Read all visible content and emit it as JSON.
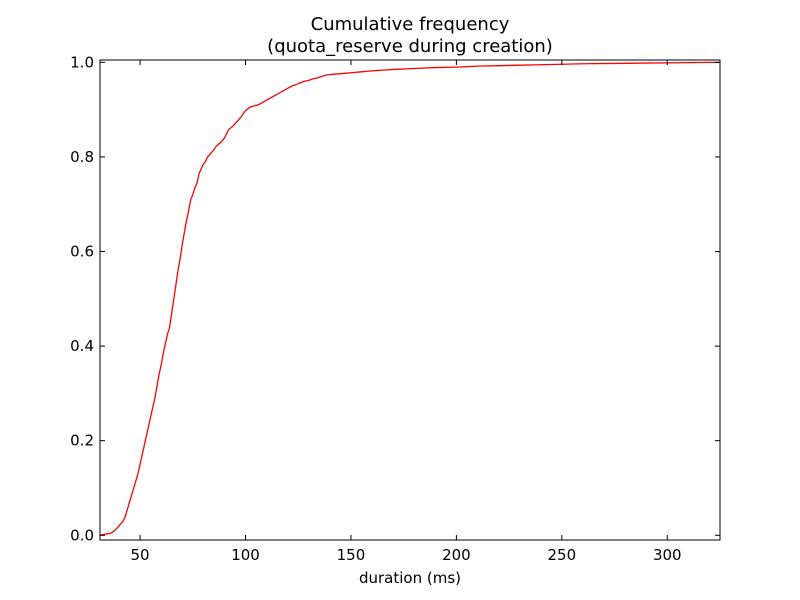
{
  "chart_data": {
    "type": "line",
    "title": "Cumulative frequency",
    "subtitle": "(quota_reserve during creation)",
    "xlabel": "duration (ms)",
    "ylabel": "",
    "xlim": [
      31,
      325
    ],
    "ylim": [
      -0.01,
      1.005
    ],
    "x_ticks": [
      50,
      100,
      150,
      200,
      250,
      300
    ],
    "x_tick_labels": [
      "50",
      "100",
      "150",
      "200",
      "250",
      "300"
    ],
    "y_ticks": [
      0.0,
      0.2,
      0.4,
      0.6,
      0.8,
      1.0
    ],
    "y_tick_labels": [
      "0.0",
      "0.2",
      "0.4",
      "0.6",
      "0.8",
      "1.0"
    ],
    "grid": false,
    "legend": "none",
    "series": [
      {
        "color": "#ff0000",
        "x": [
          31,
          33,
          36,
          38,
          40,
          42,
          43,
          44,
          45,
          46,
          47,
          48,
          49,
          50,
          51,
          52,
          53,
          54,
          55,
          56,
          57,
          58,
          59,
          60,
          61,
          62,
          63,
          64,
          65,
          66,
          67,
          68,
          69,
          70,
          71,
          72,
          73,
          74,
          75,
          76,
          77,
          78,
          79,
          80,
          81,
          82,
          83,
          84,
          85,
          86,
          88,
          90,
          92,
          94,
          96,
          98,
          99,
          100,
          102,
          104,
          106,
          108,
          110,
          112,
          114,
          116,
          118,
          120,
          122,
          124,
          126,
          128,
          130,
          132,
          134,
          136,
          138,
          140,
          142,
          145,
          150,
          155,
          160,
          170,
          180,
          190,
          200,
          210,
          220,
          230,
          240,
          250,
          260,
          280,
          300,
          320,
          325
        ],
        "y": [
          0.0,
          0.002,
          0.004,
          0.01,
          0.02,
          0.03,
          0.04,
          0.055,
          0.07,
          0.085,
          0.1,
          0.115,
          0.13,
          0.15,
          0.17,
          0.19,
          0.21,
          0.23,
          0.25,
          0.27,
          0.29,
          0.315,
          0.34,
          0.36,
          0.385,
          0.405,
          0.425,
          0.44,
          0.47,
          0.5,
          0.53,
          0.56,
          0.585,
          0.615,
          0.64,
          0.665,
          0.685,
          0.71,
          0.72,
          0.735,
          0.745,
          0.765,
          0.775,
          0.785,
          0.79,
          0.8,
          0.805,
          0.81,
          0.815,
          0.822,
          0.83,
          0.84,
          0.858,
          0.865,
          0.875,
          0.885,
          0.892,
          0.898,
          0.905,
          0.908,
          0.91,
          0.915,
          0.92,
          0.925,
          0.93,
          0.935,
          0.94,
          0.945,
          0.95,
          0.953,
          0.957,
          0.96,
          0.962,
          0.965,
          0.967,
          0.97,
          0.973,
          0.974,
          0.975,
          0.976,
          0.978,
          0.98,
          0.982,
          0.985,
          0.987,
          0.989,
          0.99,
          0.992,
          0.993,
          0.994,
          0.995,
          0.996,
          0.997,
          0.998,
          0.999,
          1.0,
          1.0
        ]
      }
    ]
  }
}
